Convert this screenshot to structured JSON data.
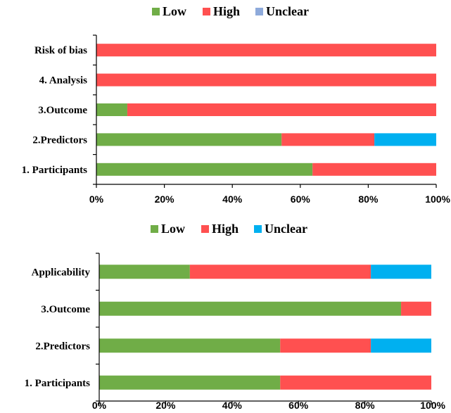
{
  "chart_data": [
    {
      "type": "bar",
      "orientation": "horizontal",
      "stacked": true,
      "categories": [
        "Risk of bias",
        "4. Analysis",
        "3.Outcome",
        "2.Predictors",
        "1. Participants"
      ],
      "series": [
        {
          "name": "Low",
          "color": "#70ad47",
          "values": [
            0,
            0,
            9.1,
            54.5,
            63.6
          ]
        },
        {
          "name": "High",
          "color": "#ff5050",
          "values": [
            100,
            100,
            90.9,
            27.3,
            36.4
          ]
        },
        {
          "name": "Unclear",
          "color": "#8eaadb",
          "values": [
            0,
            0,
            0,
            18.2,
            0
          ]
        }
      ],
      "bar_colors_override": {
        "Unclear": "#00b0f0"
      },
      "xlim": [
        0,
        100
      ],
      "xticks": [
        "0%",
        "20%",
        "40%",
        "60%",
        "80%",
        "100%"
      ],
      "legend_position": "top",
      "grid": false
    },
    {
      "type": "bar",
      "orientation": "horizontal",
      "stacked": true,
      "categories": [
        "Applicability",
        "3.Outcome",
        "2.Predictors",
        "1. Participants"
      ],
      "series": [
        {
          "name": "Low",
          "color": "#70ad47",
          "values": [
            27.3,
            90.9,
            54.5,
            54.5
          ]
        },
        {
          "name": "High",
          "color": "#ff5050",
          "values": [
            54.5,
            9.1,
            27.3,
            45.5
          ]
        },
        {
          "name": "Unclear",
          "color": "#00b0f0",
          "values": [
            18.2,
            0,
            18.2,
            0
          ]
        }
      ],
      "xlim": [
        0,
        100
      ],
      "xticks": [
        "0%",
        "20%",
        "40%",
        "60%",
        "80%",
        "100%"
      ],
      "legend_position": "top",
      "grid": false
    }
  ]
}
